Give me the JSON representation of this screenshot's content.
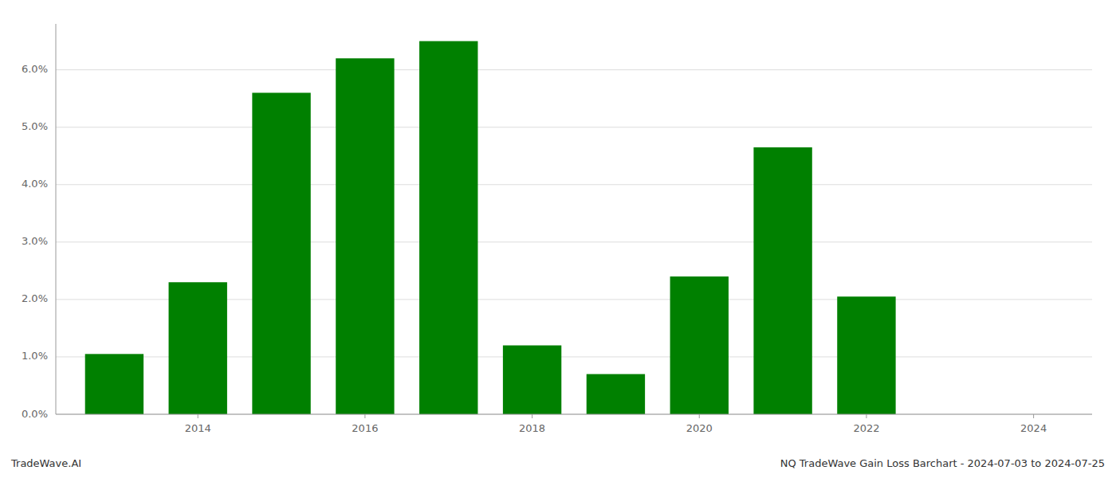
{
  "chart_data": {
    "type": "bar",
    "x": [
      2013,
      2014,
      2015,
      2016,
      2017,
      2018,
      2019,
      2020,
      2021,
      2022,
      2023
    ],
    "values": [
      0.0105,
      0.023,
      0.056,
      0.062,
      0.065,
      0.012,
      0.007,
      0.024,
      0.0465,
      0.0205,
      null
    ],
    "color": "#008000",
    "xlim": [
      2012.3,
      2024.7
    ],
    "xticks": [
      2014,
      2016,
      2018,
      2020,
      2022,
      2024
    ],
    "ylim": [
      0,
      0.068
    ],
    "yticks": [
      {
        "value": 0.0,
        "label": "0.0%"
      },
      {
        "value": 0.01,
        "label": "1.0%"
      },
      {
        "value": 0.02,
        "label": "2.0%"
      },
      {
        "value": 0.03,
        "label": "3.0%"
      },
      {
        "value": 0.04,
        "label": "4.0%"
      },
      {
        "value": 0.05,
        "label": "5.0%"
      },
      {
        "value": 0.06,
        "label": "6.0%"
      }
    ],
    "grid": true,
    "annotations": [
      "TradeWave.AI",
      "NQ TradeWave Gain Loss Barchart - 2024-07-03 to 2024-07-25"
    ]
  }
}
